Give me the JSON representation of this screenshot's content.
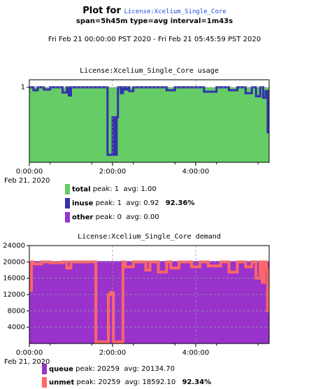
{
  "page": {
    "title_prefix": "Plot for",
    "title_license": "License:Xcelium_Single_Core",
    "subtitle": "span=5h45m type=avg interval=1m43s",
    "range": "Fri Feb 21 00:00:00 PST 2020 - Fri Feb 21 05:45:59 PST 2020"
  },
  "colors": {
    "total": "#66cc66",
    "inuse": "#3333aa",
    "other": "#9933cc",
    "queue": "#9933cc",
    "unmet": "#ff6666",
    "grid": "#999999"
  },
  "chart_data": [
    {
      "type": "area",
      "title": "License:Xcelium_Single_Core usage",
      "xlabel": "",
      "ylabel": "",
      "x_unit": "hours since 00:00",
      "xlim": [
        0,
        5.766
      ],
      "ylim": [
        0,
        1.1
      ],
      "yticks": [
        1
      ],
      "ytick_labels": [
        "1"
      ],
      "xticks": [
        0,
        2,
        4
      ],
      "xtick_labels": [
        "0:00:00",
        "2:00:00",
        "4:00:00"
      ],
      "x_date_label": "Feb 21, 2020",
      "grid": true,
      "legend_position": "bottom",
      "x": [
        0,
        0.1,
        0.2,
        0.35,
        0.5,
        0.8,
        0.9,
        0.95,
        1.0,
        1.4,
        1.7,
        1.78,
        1.86,
        1.88,
        1.95,
        2.0,
        2.05,
        2.1,
        2.13,
        2.2,
        2.25,
        2.3,
        2.35,
        2.4,
        2.5,
        2.8,
        3.2,
        3.3,
        3.5,
        3.7,
        4.2,
        4.5,
        4.8,
        5.0,
        5.2,
        5.35,
        5.45,
        5.55,
        5.62,
        5.68,
        5.73,
        5.766
      ],
      "series": [
        {
          "name": "total",
          "values": [
            1,
            1,
            1,
            1,
            1,
            1,
            1,
            1,
            1,
            1,
            1,
            1,
            1,
            1,
            1,
            1,
            1,
            1,
            1,
            1,
            1,
            1,
            1,
            1,
            1,
            1,
            1,
            1,
            1,
            1,
            1,
            1,
            1,
            1,
            1,
            1,
            1,
            1,
            1,
            1,
            1,
            1
          ],
          "peak": "1",
          "avg": "1.00",
          "pct": ""
        },
        {
          "name": "inuse",
          "values": [
            1,
            0.96,
            1,
            0.97,
            1,
            0.93,
            1,
            0.89,
            1,
            1,
            1,
            1,
            1,
            0.1,
            0.1,
            0.6,
            0.1,
            0.6,
            1,
            0.92,
            1,
            0.97,
            1,
            0.95,
            1,
            1,
            1,
            0.96,
            1,
            1,
            0.94,
            1,
            0.96,
            1,
            0.92,
            1,
            0.88,
            1,
            0.86,
            0.95,
            0.4,
            0.4
          ],
          "peak": "1",
          "avg": "0.92",
          "pct": "92.36%"
        },
        {
          "name": "other",
          "values": [
            0,
            0,
            0,
            0,
            0,
            0,
            0,
            0,
            0,
            0,
            0,
            0,
            0,
            0,
            0,
            0,
            0,
            0,
            0,
            0,
            0,
            0,
            0,
            0,
            0,
            0,
            0,
            0,
            0,
            0,
            0,
            0,
            0,
            0,
            0,
            0,
            0,
            0,
            0,
            0,
            0,
            0
          ],
          "peak": "0",
          "avg": "0.00",
          "pct": ""
        }
      ]
    },
    {
      "type": "area",
      "title": "License:Xcelium_Single_Core demand",
      "xlabel": "",
      "ylabel": "",
      "x_unit": "hours since 00:00",
      "xlim": [
        0,
        5.766
      ],
      "ylim": [
        0,
        24000
      ],
      "yticks": [
        4000,
        8000,
        12000,
        16000,
        20000,
        24000
      ],
      "ytick_labels": [
        "4000",
        "8000",
        "12000",
        "16000",
        "20000",
        "24000"
      ],
      "xticks": [
        0,
        2,
        4
      ],
      "xtick_labels": [
        "0:00:00",
        "2:00:00",
        "4:00:00"
      ],
      "x_date_label": "Feb 21, 2020",
      "grid": true,
      "legend_position": "bottom",
      "x": [
        0,
        0.05,
        0.1,
        0.3,
        0.5,
        0.8,
        0.9,
        1.0,
        1.3,
        1.55,
        1.6,
        1.75,
        1.85,
        1.9,
        1.95,
        2.02,
        2.08,
        2.15,
        2.25,
        2.3,
        2.5,
        2.8,
        2.9,
        3.1,
        3.3,
        3.4,
        3.6,
        3.9,
        4.1,
        4.3,
        4.6,
        4.8,
        5.0,
        5.2,
        5.35,
        5.45,
        5.55,
        5.6,
        5.65,
        5.7,
        5.73,
        5.766
      ],
      "series": [
        {
          "name": "queue",
          "values": [
            20200,
            20200,
            20200,
            20200,
            20200,
            20200,
            20200,
            20200,
            20200,
            20200,
            20200,
            20200,
            20200,
            20200,
            20200,
            20200,
            20200,
            20200,
            20200,
            20200,
            20200,
            20200,
            20200,
            20200,
            20200,
            20200,
            20200,
            20200,
            20200,
            20200,
            20200,
            20200,
            20200,
            20200,
            20200,
            20200,
            20200,
            20200,
            20200,
            20200,
            20200,
            20200
          ],
          "peak": "20259",
          "avg": "20134.70",
          "pct": ""
        },
        {
          "name": "unmet",
          "values": [
            13000,
            20000,
            19500,
            20000,
            19800,
            20000,
            18500,
            20000,
            20000,
            20000,
            400,
            400,
            400,
            12000,
            12500,
            400,
            400,
            400,
            20000,
            18800,
            20000,
            18000,
            20000,
            17500,
            20000,
            18500,
            20000,
            18800,
            20000,
            19000,
            20000,
            17500,
            20000,
            18800,
            20000,
            16000,
            20000,
            15000,
            20000,
            18000,
            8000,
            8000
          ],
          "peak": "20259",
          "avg": "18592.10",
          "pct": "92.34%"
        }
      ]
    }
  ]
}
